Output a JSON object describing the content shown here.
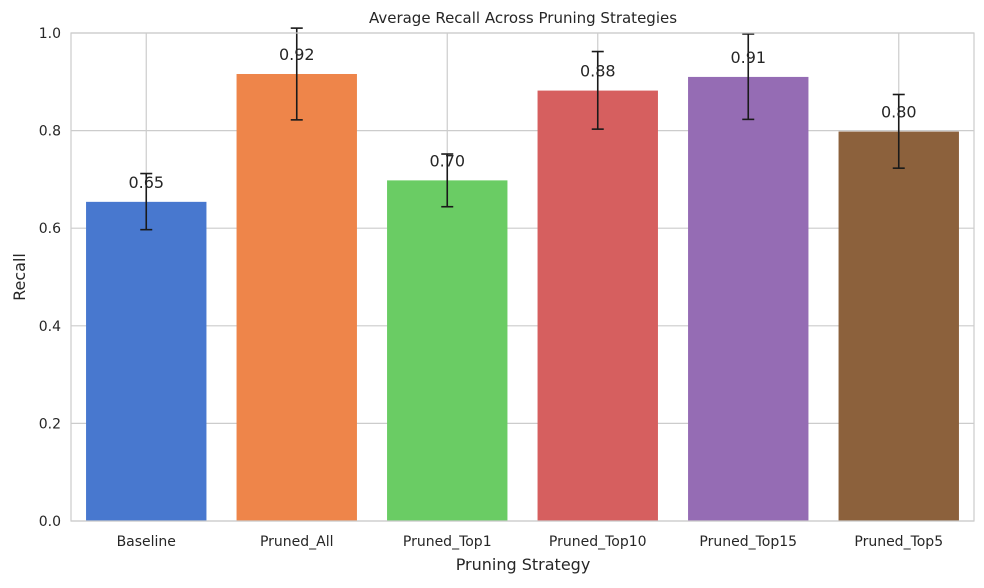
{
  "chart_data": {
    "type": "bar",
    "title": "Average Recall Across Pruning Strategies",
    "xlabel": "Pruning Strategy",
    "ylabel": "Recall",
    "ylim": [
      0,
      1.0
    ],
    "yticks": [
      "0.0",
      "0.2",
      "0.4",
      "0.6",
      "0.8",
      "1.0"
    ],
    "grid": true,
    "categories": [
      "Baseline",
      "Pruned_All",
      "Pruned_Top1",
      "Pruned_Top10",
      "Pruned_Top15",
      "Pruned_Top5"
    ],
    "values": [
      0.654,
      0.916,
      0.698,
      0.882,
      0.91,
      0.798
    ],
    "value_labels": [
      "0.65",
      "0.92",
      "0.70",
      "0.88",
      "0.91",
      "0.80"
    ],
    "error_low": [
      0.597,
      0.822,
      0.644,
      0.803,
      0.823,
      0.723
    ],
    "error_high": [
      0.712,
      1.01,
      0.752,
      0.962,
      0.998,
      0.874
    ],
    "colors": [
      "#4878cf",
      "#ee854a",
      "#6acc64",
      "#d65f5f",
      "#956cb4",
      "#8c613c"
    ]
  }
}
